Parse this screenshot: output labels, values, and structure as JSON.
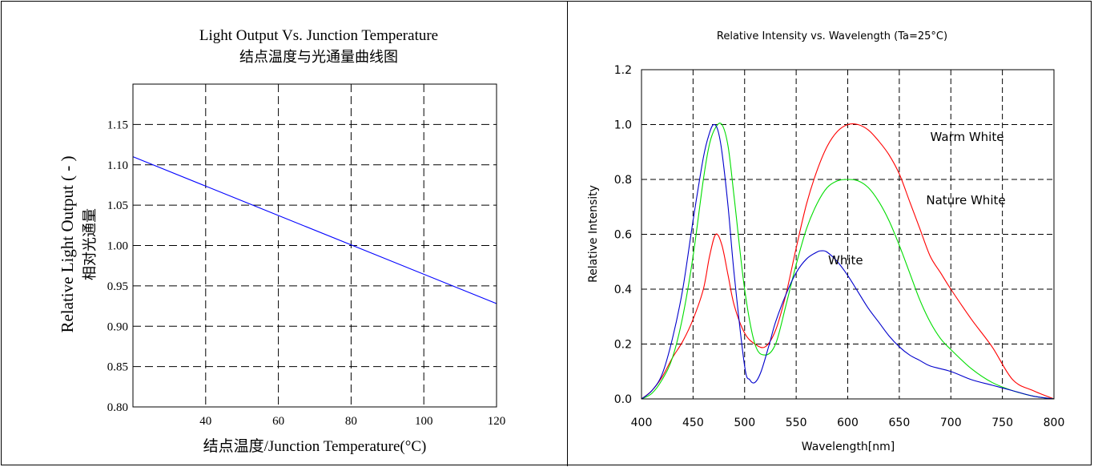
{
  "chart_data": [
    {
      "type": "line",
      "title": "Light Output Vs. Junction Temperature",
      "subtitle": "结点温度与光通量曲线图",
      "xlabel": "结点温度/Junction Temperature(°C)",
      "ylabel": "Relative Light Output ( - )",
      "ylabel_cn": "相对光通量",
      "xlim": [
        20,
        120
      ],
      "ylim": [
        0.8,
        1.2
      ],
      "xticks": [
        40,
        60,
        80,
        100,
        120
      ],
      "yticks": [
        0.8,
        0.85,
        0.9,
        0.95,
        1.0,
        1.05,
        1.1,
        1.15
      ],
      "ytick_labels": [
        "0.80",
        "0.85",
        "0.90",
        "0.95",
        "1.00",
        "1.05",
        "1.10",
        "1.15"
      ],
      "grid": true,
      "series": [
        {
          "color": "#0000ff",
          "x": [
            20,
            120
          ],
          "y": [
            1.11,
            0.928
          ]
        }
      ]
    },
    {
      "type": "line",
      "title": "Relative Intensity vs. Wavelength (Ta=25°C)",
      "xlabel": "Wavelength[nm]",
      "ylabel": "Relative Intensity",
      "xlim": [
        400,
        800
      ],
      "ylim": [
        0,
        1.2
      ],
      "xticks": [
        400,
        450,
        500,
        550,
        600,
        650,
        700,
        750,
        800
      ],
      "yticks": [
        0.0,
        0.2,
        0.4,
        0.6,
        0.8,
        1.0,
        1.2
      ],
      "ytick_labels": [
        "0.0",
        "0.2",
        "0.4",
        "0.6",
        "0.8",
        "1.0",
        "1.2"
      ],
      "grid": true,
      "series": [
        {
          "name": "Warm White",
          "color": "#ff0000",
          "x": [
            400,
            410,
            420,
            430,
            440,
            450,
            460,
            466,
            472,
            478,
            484,
            490,
            500,
            510,
            520,
            530,
            540,
            550,
            560,
            570,
            580,
            590,
            600,
            610,
            620,
            630,
            640,
            650,
            660,
            670,
            680,
            690,
            700,
            720,
            740,
            760,
            780,
            800
          ],
          "y": [
            0.0,
            0.03,
            0.08,
            0.15,
            0.21,
            0.29,
            0.4,
            0.52,
            0.6,
            0.56,
            0.45,
            0.34,
            0.24,
            0.2,
            0.19,
            0.25,
            0.38,
            0.55,
            0.71,
            0.83,
            0.92,
            0.975,
            1.0,
            1.0,
            0.98,
            0.94,
            0.89,
            0.82,
            0.72,
            0.62,
            0.52,
            0.46,
            0.4,
            0.29,
            0.19,
            0.07,
            0.03,
            0.0
          ]
        },
        {
          "name": "Nature White",
          "color": "#00dd00",
          "x": [
            400,
            410,
            420,
            430,
            440,
            450,
            460,
            466,
            472,
            478,
            484,
            490,
            500,
            510,
            520,
            530,
            540,
            550,
            560,
            570,
            580,
            590,
            600,
            610,
            620,
            630,
            640,
            650,
            660,
            670,
            680,
            690,
            700,
            720,
            740,
            760,
            780,
            800
          ],
          "y": [
            0.0,
            0.02,
            0.07,
            0.15,
            0.3,
            0.52,
            0.8,
            0.93,
            0.99,
            1.0,
            0.92,
            0.73,
            0.4,
            0.2,
            0.16,
            0.2,
            0.34,
            0.49,
            0.62,
            0.71,
            0.77,
            0.795,
            0.8,
            0.795,
            0.77,
            0.72,
            0.65,
            0.56,
            0.46,
            0.36,
            0.28,
            0.22,
            0.18,
            0.11,
            0.06,
            0.03,
            0.01,
            0.0
          ]
        },
        {
          "name": "White",
          "color": "#0000cc",
          "x": [
            400,
            410,
            420,
            430,
            440,
            450,
            460,
            466,
            470,
            474,
            478,
            484,
            490,
            500,
            505,
            510,
            516,
            524,
            530,
            540,
            550,
            560,
            570,
            575,
            580,
            590,
            600,
            610,
            620,
            630,
            640,
            650,
            660,
            670,
            680,
            700,
            720,
            740,
            760,
            780,
            800
          ],
          "y": [
            0.0,
            0.03,
            0.09,
            0.22,
            0.4,
            0.65,
            0.88,
            0.97,
            1.0,
            0.98,
            0.9,
            0.7,
            0.45,
            0.12,
            0.07,
            0.06,
            0.1,
            0.2,
            0.28,
            0.38,
            0.46,
            0.51,
            0.535,
            0.54,
            0.535,
            0.5,
            0.45,
            0.39,
            0.33,
            0.28,
            0.23,
            0.19,
            0.16,
            0.14,
            0.12,
            0.1,
            0.07,
            0.05,
            0.03,
            0.01,
            0.0
          ]
        }
      ],
      "annotations": [
        {
          "text": "Warm White",
          "x": 680,
          "y": 0.94
        },
        {
          "text": "Nature White",
          "x": 676,
          "y": 0.71
        },
        {
          "text": "White",
          "x": 581,
          "y": 0.49
        }
      ]
    }
  ]
}
